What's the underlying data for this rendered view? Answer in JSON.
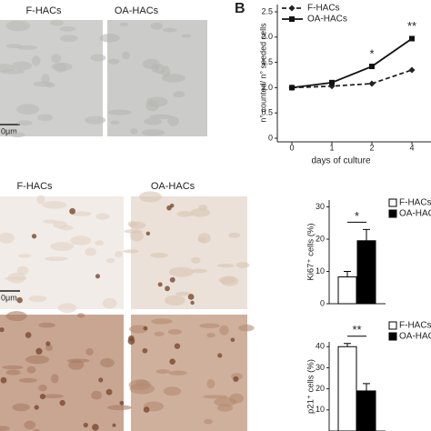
{
  "panel_label": "B",
  "micrographs": {
    "top": {
      "labels": [
        "F-HACs",
        "OA-HACs"
      ],
      "scale": "0μm"
    },
    "bottom": {
      "labels": [
        "F-HACs",
        "OA-HACs"
      ],
      "scale": "0μm"
    }
  },
  "chart_data": [
    {
      "type": "line",
      "categories": [
        "0",
        "1",
        "2",
        "4"
      ],
      "x_label": "days of culture",
      "y_label": "n° counted/ n° seeded cells",
      "ylim": [
        0,
        2.5
      ],
      "yticks": [
        0,
        0.5,
        {
          "value": 1,
          "label": "1.0"
        },
        1.5,
        {
          "value": 2,
          "label": "2.0"
        },
        2.5
      ],
      "series": [
        {
          "name": "F-HACs",
          "color": "#222222",
          "dashed": true,
          "marker": "diamond",
          "values": [
            1.0,
            1.03,
            1.08,
            1.35
          ]
        },
        {
          "name": "OA-HACs",
          "color": "#111111",
          "dashed": false,
          "marker": "square",
          "values": [
            1.0,
            1.1,
            1.42,
            1.97
          ]
        }
      ],
      "annotations": [
        {
          "text": "*",
          "category": 2
        },
        {
          "text": "**",
          "category": 3
        }
      ]
    },
    {
      "type": "bar",
      "y_label": "Ki67⁺ cells (%)",
      "ylim": [
        0,
        30
      ],
      "yticks": [
        0,
        10,
        20,
        30
      ],
      "series": [
        {
          "name": "F-HACs",
          "color": "#ffffff",
          "values": [
            8.3
          ],
          "errors": [
            1.7
          ]
        },
        {
          "name": "OA-HACs",
          "color": "#000000",
          "values": [
            19.5
          ],
          "errors": [
            3.5
          ]
        }
      ],
      "annotation": "*"
    },
    {
      "type": "bar",
      "y_label": "p21⁺ cells (%)",
      "ylim": [
        0,
        42
      ],
      "yticks": [
        10,
        20,
        30,
        40
      ],
      "series": [
        {
          "name": "F-HACs",
          "color": "#ffffff",
          "values": [
            40
          ],
          "errors": [
            1.5
          ]
        },
        {
          "name": "OA-HACs",
          "color": "#000000",
          "values": [
            19
          ],
          "errors": [
            3.5
          ]
        }
      ],
      "annotation": "**"
    }
  ]
}
